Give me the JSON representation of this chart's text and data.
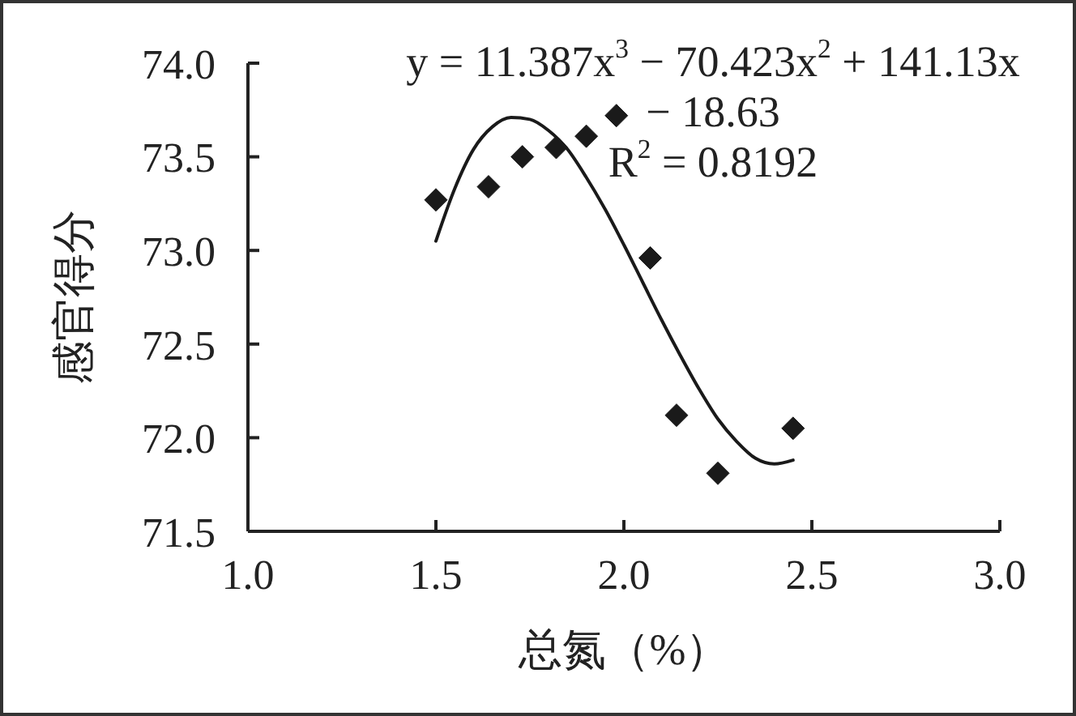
{
  "chart_data": {
    "type": "scatter",
    "xlabel": "总氮（%）",
    "ylabel": "感官得分",
    "annotations": [
      "y = 11.387x$^{3}$ − 70.423x$^{2}$ + 141.13x − 18.63",
      "R$^{2}$ = 0.8192"
    ],
    "xlim": [
      1,
      3
    ],
    "xticks": [
      {
        "value": 1,
        "label": "1.0"
      },
      1.5,
      {
        "value": 2,
        "label": "2.0"
      },
      2.5,
      {
        "value": 3,
        "label": "3.0"
      }
    ],
    "ylim": [
      71.5,
      74
    ],
    "yticks": [
      71.5,
      {
        "value": 72,
        "label": "72.0"
      },
      72.5,
      {
        "value": 73,
        "label": "73.0"
      },
      73.5,
      {
        "value": 74,
        "label": "74.0"
      }
    ],
    "series": [
      {
        "color": "#1a1a1a",
        "marker": "diamond",
        "x": [
          1.5,
          1.64,
          1.73,
          1.82,
          1.9,
          1.98,
          2.07,
          2.14,
          2.25,
          2.45
        ],
        "values": [
          73.27,
          73.34,
          73.5,
          73.55,
          73.61,
          73.72,
          72.96,
          72.12,
          71.81,
          72.05
        ]
      },
      {
        "type": "line",
        "color": "#1a1a1a",
        "marker": "none",
        "x": [
          1.5,
          1.55,
          1.6,
          1.65,
          1.7,
          1.75,
          1.8,
          1.85,
          1.9,
          1.95,
          2.0,
          2.05,
          2.1,
          2.15,
          2.2,
          2.25,
          2.3,
          2.35,
          2.4,
          2.45
        ],
        "values": [
          73.05,
          73.33,
          73.54,
          73.66,
          73.71,
          73.7,
          73.64,
          73.54,
          73.39,
          73.22,
          73.03,
          72.83,
          72.63,
          72.44,
          72.26,
          72.1,
          71.98,
          71.89,
          71.86,
          71.88
        ]
      }
    ]
  }
}
